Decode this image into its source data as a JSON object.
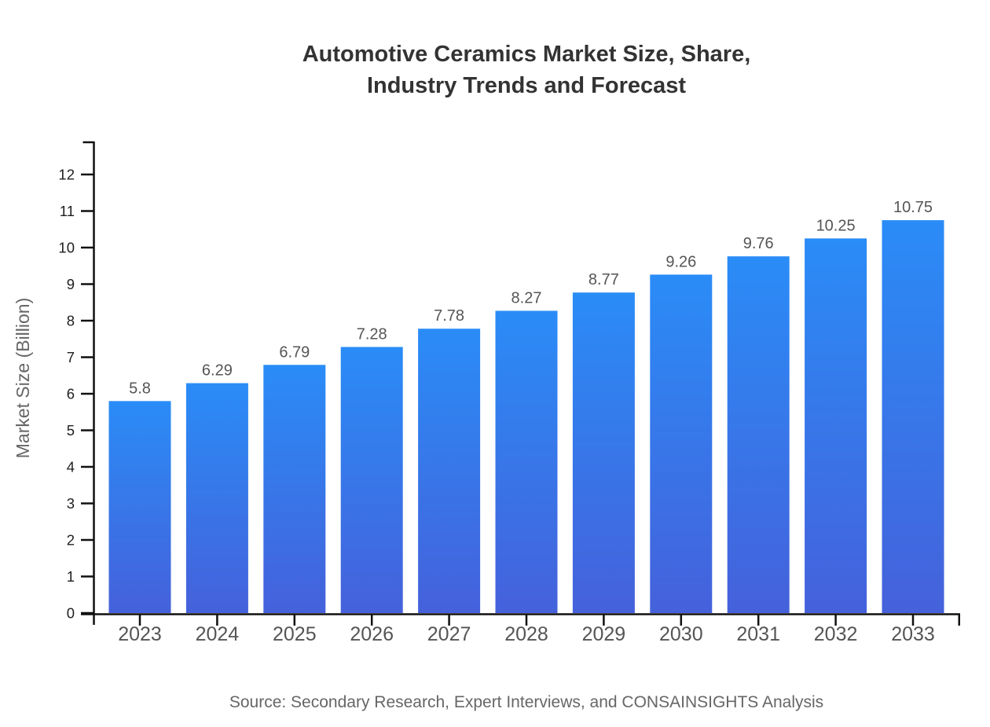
{
  "title": {
    "line1": "Automotive Ceramics Market Size, Share,",
    "line2": "Industry Trends and Forecast"
  },
  "source": "Source: Secondary Research, Expert Interviews, and CONSAINSIGHTS Analysis",
  "colors": {
    "bar_gradient_top": "#2a8cf7",
    "bar_gradient_bottom": "#4561db",
    "axis": "#111111",
    "ytick_text": "#1f1f1f",
    "xtick_text": "#555555",
    "value_label_text": "#555555",
    "title_text": "#333333",
    "ylabel_text": "#666666",
    "source_text": "#666666",
    "background": "#ffffff"
  },
  "chart_data": {
    "type": "bar",
    "title": "Automotive Ceramics Market Size, Share, Industry Trends and Forecast",
    "categories": [
      "2023",
      "2024",
      "2025",
      "2026",
      "2027",
      "2028",
      "2029",
      "2030",
      "2031",
      "2032",
      "2033"
    ],
    "values": [
      5.8,
      6.29,
      6.79,
      7.28,
      7.78,
      8.27,
      8.77,
      9.26,
      9.76,
      10.25,
      10.75
    ],
    "xlabel": "",
    "ylabel": "Market Size (Billion)",
    "ylim": [
      0,
      12
    ],
    "ytick_step": 1,
    "yticks": [
      0,
      1,
      2,
      3,
      4,
      5,
      6,
      7,
      8,
      9,
      10,
      11,
      12
    ],
    "grid": false,
    "legend_position": "none",
    "value_labels_shown": true,
    "bar_gradient": {
      "top": "#2a8cf7",
      "bottom": "#4561db"
    }
  }
}
